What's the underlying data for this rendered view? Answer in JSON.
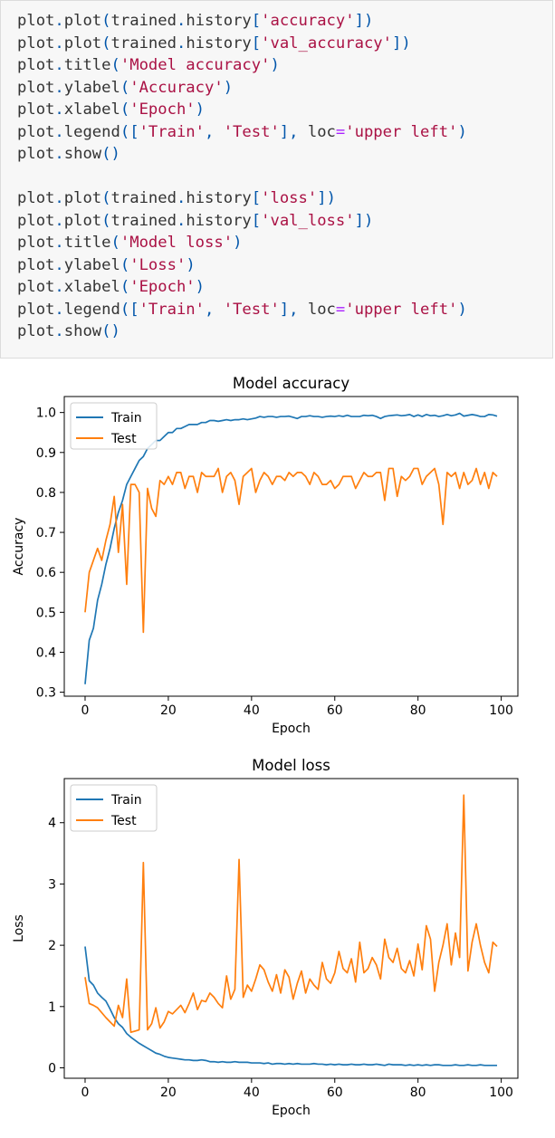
{
  "code_cell": {
    "lines": [
      [
        [
          "name",
          "plot"
        ],
        [
          "punc",
          "."
        ],
        [
          "name",
          "plot"
        ],
        [
          "punc",
          "("
        ],
        [
          "name",
          "trained"
        ],
        [
          "punc",
          "."
        ],
        [
          "name",
          "history"
        ],
        [
          "punc",
          "["
        ],
        [
          "str",
          "'accuracy'"
        ],
        [
          "punc",
          "])"
        ]
      ],
      [
        [
          "name",
          "plot"
        ],
        [
          "punc",
          "."
        ],
        [
          "name",
          "plot"
        ],
        [
          "punc",
          "("
        ],
        [
          "name",
          "trained"
        ],
        [
          "punc",
          "."
        ],
        [
          "name",
          "history"
        ],
        [
          "punc",
          "["
        ],
        [
          "str",
          "'val_accuracy'"
        ],
        [
          "punc",
          "])"
        ]
      ],
      [
        [
          "name",
          "plot"
        ],
        [
          "punc",
          "."
        ],
        [
          "name",
          "title"
        ],
        [
          "punc",
          "("
        ],
        [
          "str",
          "'Model accuracy'"
        ],
        [
          "punc",
          ")"
        ]
      ],
      [
        [
          "name",
          "plot"
        ],
        [
          "punc",
          "."
        ],
        [
          "name",
          "ylabel"
        ],
        [
          "punc",
          "("
        ],
        [
          "str",
          "'Accuracy'"
        ],
        [
          "punc",
          ")"
        ]
      ],
      [
        [
          "name",
          "plot"
        ],
        [
          "punc",
          "."
        ],
        [
          "name",
          "xlabel"
        ],
        [
          "punc",
          "("
        ],
        [
          "str",
          "'Epoch'"
        ],
        [
          "punc",
          ")"
        ]
      ],
      [
        [
          "name",
          "plot"
        ],
        [
          "punc",
          "."
        ],
        [
          "name",
          "legend"
        ],
        [
          "punc",
          "(["
        ],
        [
          "str",
          "'Train'"
        ],
        [
          "punc",
          ", "
        ],
        [
          "str",
          "'Test'"
        ],
        [
          "punc",
          "], "
        ],
        [
          "kw",
          "loc"
        ],
        [
          "op",
          "="
        ],
        [
          "str",
          "'upper left'"
        ],
        [
          "punc",
          ")"
        ]
      ],
      [
        [
          "name",
          "plot"
        ],
        [
          "punc",
          "."
        ],
        [
          "name",
          "show"
        ],
        [
          "punc",
          "()"
        ]
      ],
      [],
      [
        [
          "name",
          "plot"
        ],
        [
          "punc",
          "."
        ],
        [
          "name",
          "plot"
        ],
        [
          "punc",
          "("
        ],
        [
          "name",
          "trained"
        ],
        [
          "punc",
          "."
        ],
        [
          "name",
          "history"
        ],
        [
          "punc",
          "["
        ],
        [
          "str",
          "'loss'"
        ],
        [
          "punc",
          "])"
        ]
      ],
      [
        [
          "name",
          "plot"
        ],
        [
          "punc",
          "."
        ],
        [
          "name",
          "plot"
        ],
        [
          "punc",
          "("
        ],
        [
          "name",
          "trained"
        ],
        [
          "punc",
          "."
        ],
        [
          "name",
          "history"
        ],
        [
          "punc",
          "["
        ],
        [
          "str",
          "'val_loss'"
        ],
        [
          "punc",
          "])"
        ]
      ],
      [
        [
          "name",
          "plot"
        ],
        [
          "punc",
          "."
        ],
        [
          "name",
          "title"
        ],
        [
          "punc",
          "("
        ],
        [
          "str",
          "'Model loss'"
        ],
        [
          "punc",
          ")"
        ]
      ],
      [
        [
          "name",
          "plot"
        ],
        [
          "punc",
          "."
        ],
        [
          "name",
          "ylabel"
        ],
        [
          "punc",
          "("
        ],
        [
          "str",
          "'Loss'"
        ],
        [
          "punc",
          ")"
        ]
      ],
      [
        [
          "name",
          "plot"
        ],
        [
          "punc",
          "."
        ],
        [
          "name",
          "xlabel"
        ],
        [
          "punc",
          "("
        ],
        [
          "str",
          "'Epoch'"
        ],
        [
          "punc",
          ")"
        ]
      ],
      [
        [
          "name",
          "plot"
        ],
        [
          "punc",
          "."
        ],
        [
          "name",
          "legend"
        ],
        [
          "punc",
          "(["
        ],
        [
          "str",
          "'Train'"
        ],
        [
          "punc",
          ", "
        ],
        [
          "str",
          "'Test'"
        ],
        [
          "punc",
          "], "
        ],
        [
          "kw",
          "loc"
        ],
        [
          "op",
          "="
        ],
        [
          "str",
          "'upper left'"
        ],
        [
          "punc",
          ")"
        ]
      ],
      [
        [
          "name",
          "plot"
        ],
        [
          "punc",
          "."
        ],
        [
          "name",
          "show"
        ],
        [
          "punc",
          "()"
        ]
      ]
    ]
  },
  "colors": {
    "train": "#1f77b4",
    "test": "#ff7f0e"
  },
  "chart_data": [
    {
      "type": "line",
      "title": "Model accuracy",
      "xlabel": "Epoch",
      "ylabel": "Accuracy",
      "xlim": [
        -5,
        104
      ],
      "ylim": [
        0.29,
        1.04
      ],
      "xticks": [
        0,
        20,
        40,
        60,
        80,
        100
      ],
      "yticks": [
        0.3,
        0.4,
        0.5,
        0.6,
        0.7,
        0.8,
        0.9,
        1.0
      ],
      "ytick_labels": [
        "0.3",
        "0.4",
        "0.5",
        "0.6",
        "0.7",
        "0.8",
        "0.9",
        "1.0"
      ],
      "legend_position": "upper left",
      "series": [
        {
          "name": "Train",
          "values": [
            0.32,
            0.43,
            0.46,
            0.53,
            0.57,
            0.62,
            0.66,
            0.71,
            0.75,
            0.78,
            0.82,
            0.84,
            0.86,
            0.88,
            0.89,
            0.91,
            0.92,
            0.93,
            0.93,
            0.94,
            0.95,
            0.95,
            0.96,
            0.96,
            0.965,
            0.97,
            0.97,
            0.97,
            0.975,
            0.975,
            0.98,
            0.98,
            0.978,
            0.98,
            0.982,
            0.98,
            0.982,
            0.982,
            0.984,
            0.982,
            0.984,
            0.986,
            0.99,
            0.988,
            0.99,
            0.99,
            0.988,
            0.99,
            0.99,
            0.991,
            0.988,
            0.985,
            0.99,
            0.99,
            0.992,
            0.99,
            0.99,
            0.988,
            0.99,
            0.991,
            0.99,
            0.992,
            0.99,
            0.993,
            0.99,
            0.99,
            0.99,
            0.993,
            0.992,
            0.993,
            0.99,
            0.985,
            0.99,
            0.992,
            0.993,
            0.994,
            0.992,
            0.993,
            0.995,
            0.99,
            0.994,
            0.99,
            0.995,
            0.992,
            0.993,
            0.99,
            0.992,
            0.995,
            0.992,
            0.994,
            0.998,
            0.991,
            0.993,
            0.995,
            0.993,
            0.99,
            0.99,
            0.995,
            0.994,
            0.991
          ]
        },
        {
          "name": "Test",
          "values": [
            0.5,
            0.6,
            0.63,
            0.66,
            0.63,
            0.68,
            0.72,
            0.79,
            0.65,
            0.77,
            0.57,
            0.82,
            0.82,
            0.8,
            0.45,
            0.81,
            0.76,
            0.74,
            0.83,
            0.82,
            0.84,
            0.82,
            0.85,
            0.85,
            0.81,
            0.84,
            0.84,
            0.8,
            0.85,
            0.84,
            0.84,
            0.84,
            0.86,
            0.8,
            0.84,
            0.85,
            0.83,
            0.77,
            0.84,
            0.85,
            0.86,
            0.8,
            0.83,
            0.85,
            0.84,
            0.82,
            0.84,
            0.84,
            0.83,
            0.85,
            0.84,
            0.85,
            0.85,
            0.84,
            0.82,
            0.85,
            0.84,
            0.82,
            0.82,
            0.83,
            0.81,
            0.82,
            0.84,
            0.84,
            0.84,
            0.81,
            0.83,
            0.85,
            0.84,
            0.84,
            0.85,
            0.85,
            0.78,
            0.86,
            0.86,
            0.79,
            0.84,
            0.83,
            0.84,
            0.86,
            0.86,
            0.82,
            0.84,
            0.85,
            0.86,
            0.82,
            0.72,
            0.85,
            0.84,
            0.85,
            0.81,
            0.85,
            0.82,
            0.83,
            0.86,
            0.82,
            0.85,
            0.81,
            0.85,
            0.84
          ]
        }
      ]
    },
    {
      "type": "line",
      "title": "Model loss",
      "xlabel": "Epoch",
      "ylabel": "Loss",
      "xlim": [
        -5,
        104
      ],
      "ylim": [
        -0.17,
        4.72
      ],
      "xticks": [
        0,
        20,
        40,
        60,
        80,
        100
      ],
      "yticks": [
        0,
        1,
        2,
        3,
        4
      ],
      "ytick_labels": [
        "0",
        "1",
        "2",
        "3",
        "4"
      ],
      "legend_position": "upper left",
      "series": [
        {
          "name": "Train",
          "values": [
            1.98,
            1.42,
            1.35,
            1.22,
            1.15,
            1.09,
            0.96,
            0.82,
            0.72,
            0.66,
            0.56,
            0.5,
            0.45,
            0.4,
            0.36,
            0.32,
            0.28,
            0.24,
            0.22,
            0.19,
            0.17,
            0.16,
            0.15,
            0.14,
            0.13,
            0.13,
            0.12,
            0.12,
            0.13,
            0.12,
            0.1,
            0.1,
            0.09,
            0.1,
            0.09,
            0.09,
            0.1,
            0.09,
            0.09,
            0.09,
            0.08,
            0.08,
            0.08,
            0.07,
            0.08,
            0.06,
            0.07,
            0.07,
            0.06,
            0.07,
            0.06,
            0.07,
            0.06,
            0.06,
            0.06,
            0.07,
            0.06,
            0.06,
            0.05,
            0.06,
            0.05,
            0.06,
            0.05,
            0.05,
            0.06,
            0.05,
            0.05,
            0.06,
            0.05,
            0.05,
            0.06,
            0.05,
            0.04,
            0.06,
            0.05,
            0.05,
            0.05,
            0.04,
            0.05,
            0.04,
            0.05,
            0.04,
            0.05,
            0.04,
            0.05,
            0.05,
            0.04,
            0.04,
            0.04,
            0.05,
            0.04,
            0.04,
            0.05,
            0.04,
            0.04,
            0.05,
            0.04,
            0.04,
            0.04,
            0.04
          ]
        },
        {
          "name": "Test",
          "values": [
            1.48,
            1.05,
            1.02,
            0.98,
            0.9,
            0.82,
            0.75,
            0.68,
            1.02,
            0.82,
            1.45,
            0.58,
            0.6,
            0.62,
            3.35,
            0.62,
            0.72,
            0.98,
            0.65,
            0.75,
            0.92,
            0.88,
            0.95,
            1.02,
            0.9,
            1.05,
            1.22,
            0.95,
            1.1,
            1.08,
            1.22,
            1.15,
            1.05,
            0.98,
            1.5,
            1.12,
            1.28,
            3.4,
            1.15,
            1.35,
            1.25,
            1.45,
            1.68,
            1.6,
            1.4,
            1.25,
            1.52,
            1.22,
            1.6,
            1.48,
            1.12,
            1.38,
            1.58,
            1.22,
            1.45,
            1.35,
            1.28,
            1.72,
            1.45,
            1.38,
            1.55,
            1.9,
            1.62,
            1.55,
            1.78,
            1.4,
            2.05,
            1.55,
            1.62,
            1.8,
            1.68,
            1.45,
            2.1,
            1.8,
            1.72,
            1.95,
            1.62,
            1.55,
            1.75,
            1.5,
            2.02,
            1.6,
            2.32,
            2.1,
            1.25,
            1.72,
            2.0,
            2.35,
            1.68,
            2.2,
            1.8,
            4.45,
            1.58,
            2.05,
            2.35,
            2.0,
            1.72,
            1.55,
            2.05,
            1.98
          ]
        }
      ]
    }
  ]
}
